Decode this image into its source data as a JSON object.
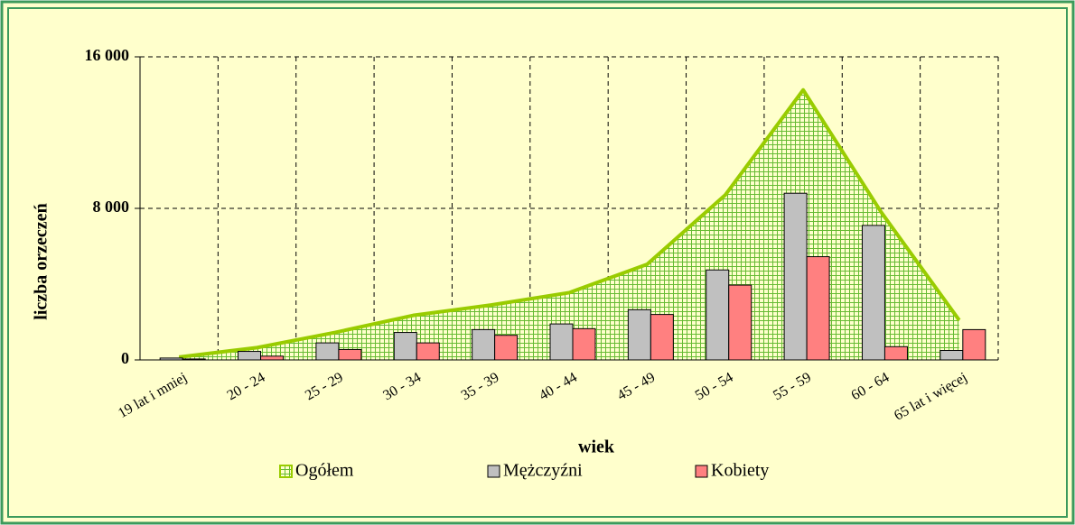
{
  "chart_data": {
    "type": "bar",
    "x_label": "wiek",
    "y_label": "liczba orzeczeń",
    "categories": [
      "19 lat i mniej",
      "20 - 24",
      "25 - 29",
      "30 - 34",
      "35 - 39",
      "40 - 44",
      "45 - 49",
      "50 - 54",
      "55 - 59",
      "60 - 64",
      "65 lat i więcej"
    ],
    "series": [
      {
        "name": "Ogółem",
        "type": "area",
        "color": "#99cc00",
        "values": [
          150,
          650,
          1450,
          2350,
          2900,
          3550,
          5050,
          8700,
          14250,
          7800,
          2100
        ]
      },
      {
        "name": "Mężczyźni",
        "color": "#c0c0c0",
        "values": [
          100,
          450,
          900,
          1450,
          1600,
          1900,
          2650,
          4750,
          8800,
          7100,
          500
        ]
      },
      {
        "name": "Kobiety",
        "color": "#ff8080",
        "values": [
          50,
          200,
          550,
          900,
          1300,
          1650,
          2400,
          3950,
          5450,
          700,
          1600
        ]
      }
    ],
    "ylim": [
      0,
      16000
    ],
    "yticks": [
      {
        "value": 0,
        "label": "0"
      },
      {
        "value": 8000,
        "label": "8 000"
      },
      {
        "value": 16000,
        "label": "16 000"
      }
    ],
    "grid": true,
    "legend": "bottom"
  }
}
